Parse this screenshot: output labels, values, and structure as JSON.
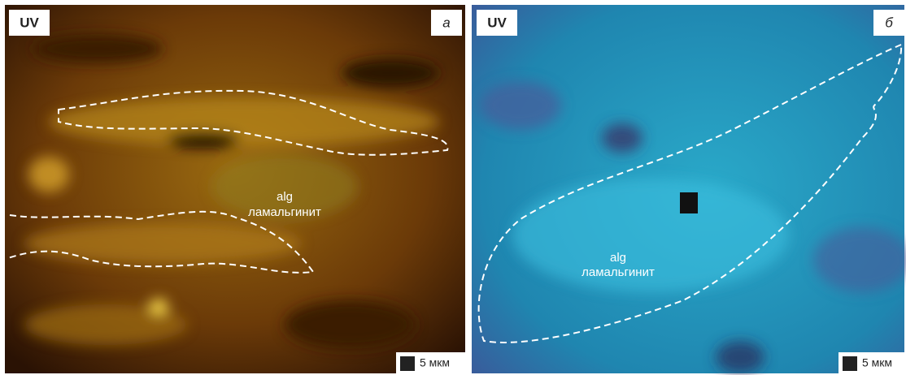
{
  "panels": [
    {
      "badge": "UV",
      "letter": "а",
      "label_1": "alg",
      "label_2": "ламальгинит",
      "scale": "5 мкм"
    },
    {
      "badge": "UV",
      "letter": "б",
      "label_1": "alg",
      "label_2": "ламальгинит",
      "scale": "5 мкм"
    }
  ]
}
